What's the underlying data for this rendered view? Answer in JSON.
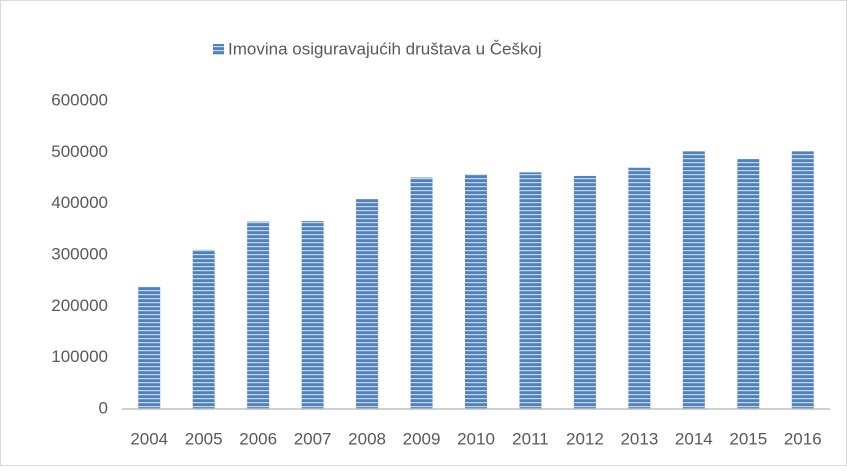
{
  "chart_data": {
    "type": "bar",
    "categories": [
      "2004",
      "2005",
      "2006",
      "2007",
      "2008",
      "2009",
      "2010",
      "2011",
      "2012",
      "2013",
      "2014",
      "2015",
      "2016"
    ],
    "series": [
      {
        "name": "Imovina osiguravajućih društava u Češkoj",
        "color": "#4f81bd",
        "values": [
          238000,
          310000,
          365000,
          366000,
          409000,
          451000,
          457000,
          461000,
          454000,
          470000,
          502000,
          487000,
          502000
        ]
      }
    ],
    "ylim": [
      0,
      600000
    ],
    "yticks": [
      0,
      100000,
      200000,
      300000,
      400000,
      500000,
      600000
    ],
    "grid": false,
    "legend": "top"
  }
}
